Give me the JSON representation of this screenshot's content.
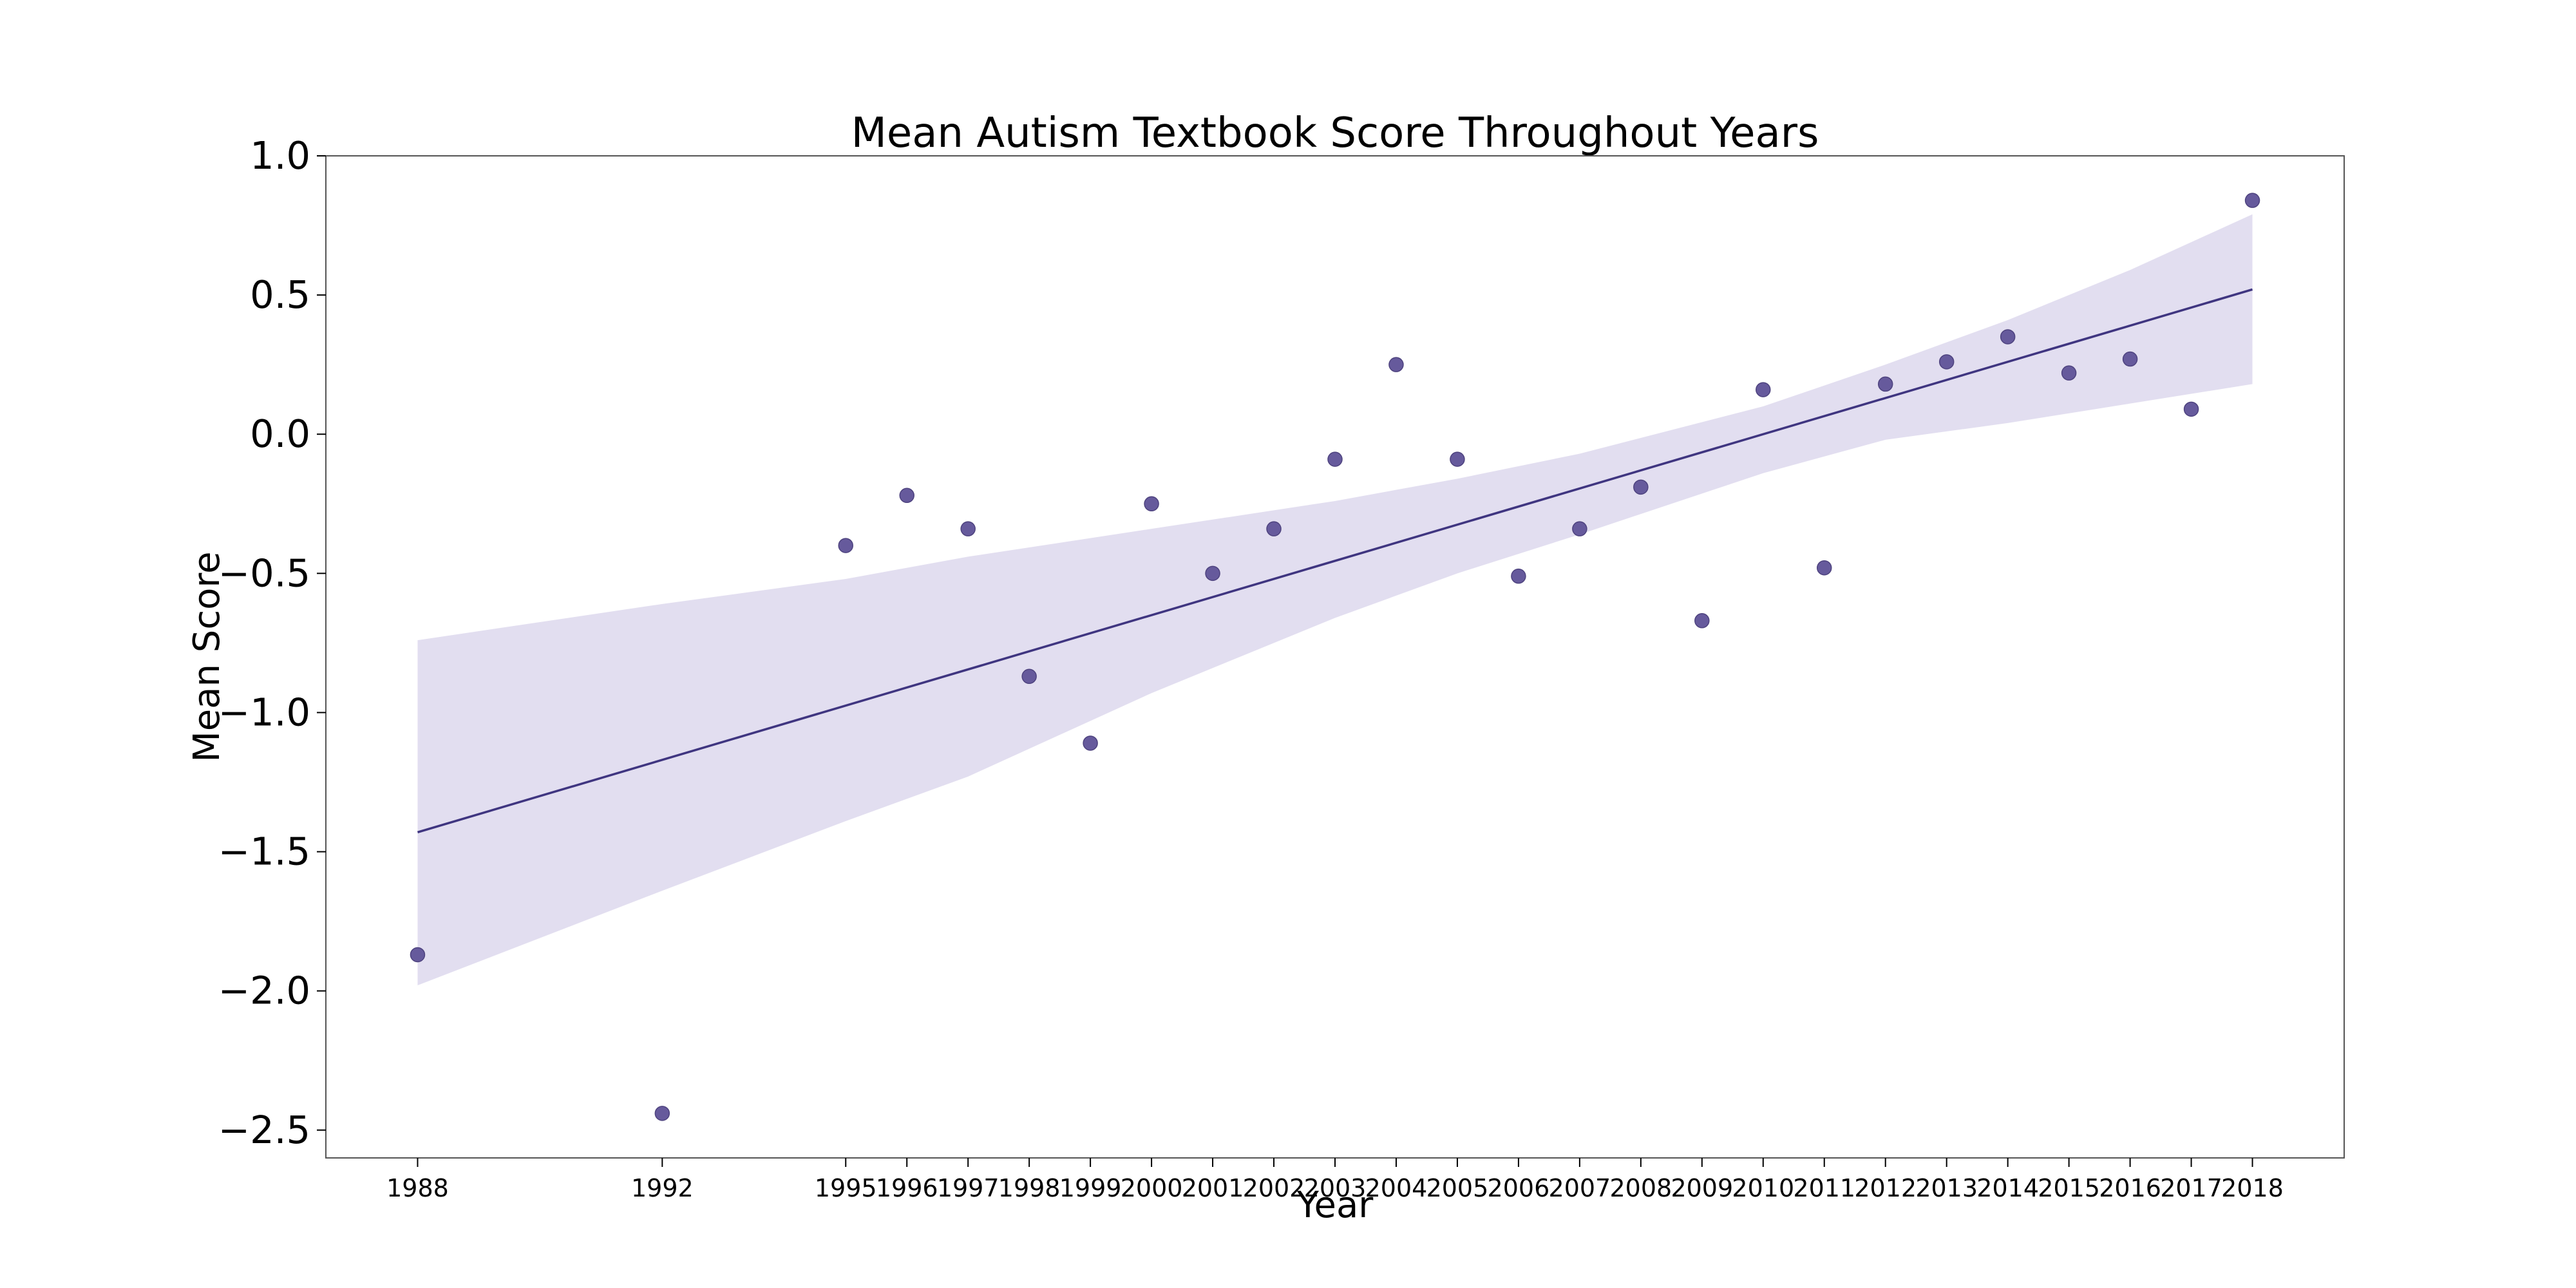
{
  "chart_data": {
    "type": "scatter",
    "title": "Mean Autism Textbook Score Throughout Years",
    "xlabel": "Year",
    "ylabel": "Mean Score",
    "ylim": [
      -2.6,
      1.0
    ],
    "xlim": [
      1986.5,
      2019.5
    ],
    "yticks": [
      1.0,
      0.5,
      0.0,
      -0.5,
      -1.0,
      -1.5,
      -2.0,
      -2.5
    ],
    "ytick_labels": [
      "1.0",
      "0.5",
      "0.0",
      "−0.5",
      "−1.0",
      "−1.5",
      "−2.0",
      "−2.5"
    ],
    "xticks": [
      1988,
      1992,
      1995,
      1996,
      1997,
      1998,
      1999,
      2000,
      2001,
      2002,
      2003,
      2004,
      2005,
      2006,
      2007,
      2008,
      2009,
      2010,
      2011,
      2012,
      2013,
      2014,
      2015,
      2016,
      2017,
      2018
    ],
    "xtick_labels": [
      "1988",
      "1992",
      "1995",
      "1996",
      "1997",
      "1998",
      "1999",
      "2000",
      "2001",
      "2002",
      "2003",
      "2004",
      "2005",
      "2006",
      "2007",
      "2008",
      "2009",
      "2010",
      "2011",
      "2012",
      "2013",
      "2014",
      "2015",
      "2016",
      "2017",
      "2018"
    ],
    "points": {
      "x": [
        1988,
        1992,
        1995,
        1996,
        1997,
        1998,
        1999,
        2000,
        2001,
        2002,
        2003,
        2004,
        2005,
        2006,
        2007,
        2008,
        2009,
        2010,
        2011,
        2012,
        2013,
        2014,
        2015,
        2016,
        2017,
        2018
      ],
      "y": [
        -1.87,
        -2.44,
        -0.4,
        -0.22,
        -0.34,
        -0.87,
        -1.11,
        -0.25,
        -0.5,
        -0.34,
        -0.09,
        0.25,
        -0.09,
        -0.51,
        -0.34,
        -0.19,
        -0.67,
        0.16,
        -0.48,
        0.18,
        0.26,
        0.35,
        0.22,
        0.27,
        0.09,
        0.84
      ]
    },
    "regression": {
      "x": [
        1988,
        2018
      ],
      "y": [
        -1.43,
        0.52
      ]
    },
    "confidence_band": {
      "x": [
        1988,
        1992,
        1995,
        1997,
        2000,
        2003,
        2005,
        2007,
        2010,
        2012,
        2014,
        2016,
        2018
      ],
      "lower": [
        -1.98,
        -1.64,
        -1.39,
        -1.23,
        -0.93,
        -0.66,
        -0.5,
        -0.36,
        -0.14,
        -0.02,
        0.04,
        0.11,
        0.18
      ],
      "upper": [
        -0.74,
        -0.61,
        -0.52,
        -0.44,
        -0.34,
        -0.24,
        -0.16,
        -0.07,
        0.1,
        0.25,
        0.41,
        0.59,
        0.79
      ]
    },
    "grid": false,
    "colors": {
      "point": "#665a9c",
      "line": "#3f3580",
      "band": "#e2def0",
      "axis": "#555555"
    }
  }
}
